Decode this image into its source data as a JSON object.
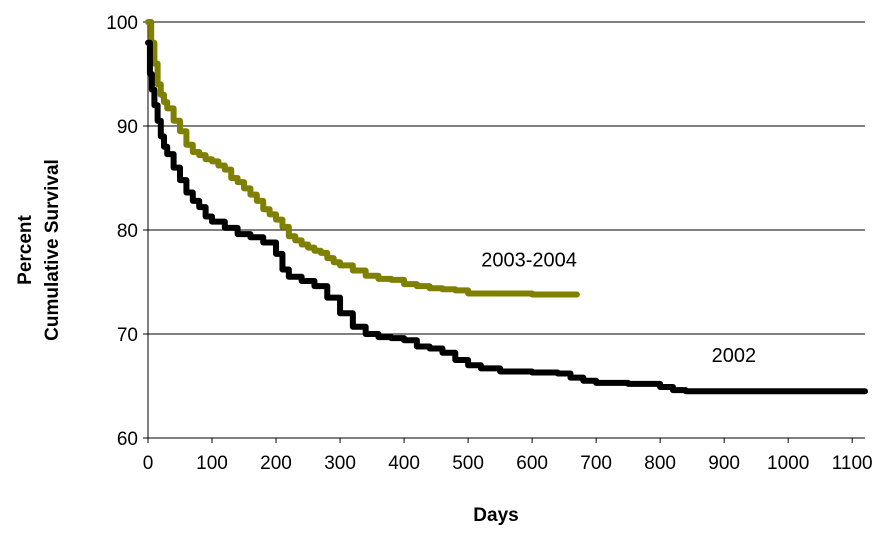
{
  "chart_data": {
    "type": "line",
    "title": "",
    "xlabel": "Days",
    "ylabel_lines": [
      "Percent",
      "Cumulative Survival"
    ],
    "xlim": [
      0,
      1120
    ],
    "ylim": [
      60,
      100
    ],
    "x_ticks": [
      0,
      100,
      200,
      300,
      400,
      500,
      600,
      700,
      800,
      900,
      1000,
      1100
    ],
    "y_ticks": [
      60,
      70,
      80,
      90,
      100
    ],
    "grid": "horizontal",
    "legend": "none",
    "series": [
      {
        "name": "2003-2004",
        "color": "#808000",
        "x": [
          0,
          5,
          10,
          15,
          20,
          25,
          30,
          40,
          50,
          60,
          70,
          80,
          90,
          100,
          110,
          120,
          130,
          140,
          150,
          160,
          170,
          180,
          190,
          200,
          210,
          220,
          230,
          240,
          250,
          260,
          270,
          280,
          290,
          300,
          320,
          340,
          360,
          380,
          400,
          420,
          440,
          460,
          480,
          500,
          550,
          600,
          650,
          670
        ],
        "y": [
          100,
          98,
          96,
          94,
          93,
          92.3,
          91.7,
          90.5,
          89.5,
          88.2,
          87.5,
          87.2,
          86.8,
          86.6,
          86.2,
          85.8,
          85.0,
          84.6,
          84.0,
          83.4,
          82.8,
          82.0,
          81.5,
          81.0,
          80.3,
          79.4,
          79.0,
          78.6,
          78.3,
          78.0,
          77.8,
          77.3,
          76.9,
          76.6,
          76.1,
          75.6,
          75.3,
          75.2,
          74.8,
          74.6,
          74.4,
          74.3,
          74.2,
          73.9,
          73.9,
          73.8,
          73.8,
          73.8
        ]
      },
      {
        "name": "2002",
        "color": "#000000",
        "x": [
          0,
          3,
          6,
          10,
          15,
          20,
          25,
          30,
          40,
          50,
          60,
          70,
          80,
          90,
          100,
          120,
          140,
          160,
          180,
          200,
          210,
          220,
          240,
          260,
          280,
          300,
          320,
          340,
          360,
          380,
          400,
          420,
          440,
          460,
          480,
          500,
          520,
          550,
          600,
          640,
          660,
          680,
          700,
          750,
          800,
          820,
          840,
          900,
          1000,
          1100,
          1120
        ],
        "y": [
          98,
          95,
          93.5,
          92,
          90.5,
          89,
          88,
          87.3,
          86,
          84.8,
          83.6,
          82.8,
          82.2,
          81.3,
          80.8,
          80.2,
          79.6,
          79.3,
          78.8,
          77.7,
          76.2,
          75.5,
          75.1,
          74.6,
          73.5,
          72.0,
          70.7,
          70.0,
          69.7,
          69.6,
          69.4,
          68.8,
          68.6,
          68.2,
          67.5,
          67.0,
          66.7,
          66.4,
          66.3,
          66.2,
          65.8,
          65.5,
          65.3,
          65.2,
          64.9,
          64.6,
          64.5,
          64.5,
          64.5,
          64.5,
          64.5
        ]
      }
    ],
    "annotations": [
      {
        "text": "2003-2004",
        "x": 670,
        "y": 76.5
      },
      {
        "text": "2002",
        "x": 950,
        "y": 67.3
      }
    ]
  }
}
